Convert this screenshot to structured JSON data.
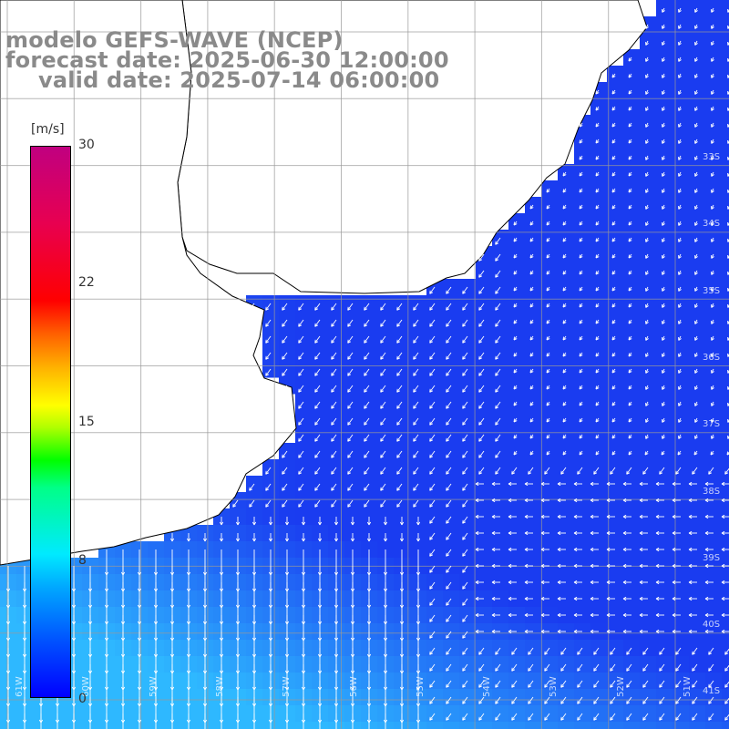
{
  "title": {
    "line1": "modelo GEFS-WAVE (NCEP)",
    "line2": "forecast date: 2025-06-30 12:00:00",
    "line3": "valid date: 2025-07-14 06:00:00"
  },
  "colorbar": {
    "unit": "[m/s]",
    "ticks": [
      "30",
      "22",
      "15",
      "8",
      "0"
    ],
    "range": [
      0,
      30
    ]
  },
  "latitude_labels": [
    "33S",
    "34S",
    "35S",
    "36S",
    "37S",
    "38S",
    "39S",
    "40S",
    "41S"
  ],
  "longitude_labels": [
    "61W",
    "60W",
    "59W",
    "58W",
    "57W",
    "56W",
    "55W",
    "54W",
    "53W",
    "52W",
    "51W"
  ],
  "colors": {
    "land": "#ffffff",
    "grid": "#999999",
    "coast": "#000000",
    "arrow": "#ffffff",
    "ocean_low": "#1a3cf0",
    "ocean_high": "#2eb8ff"
  }
}
